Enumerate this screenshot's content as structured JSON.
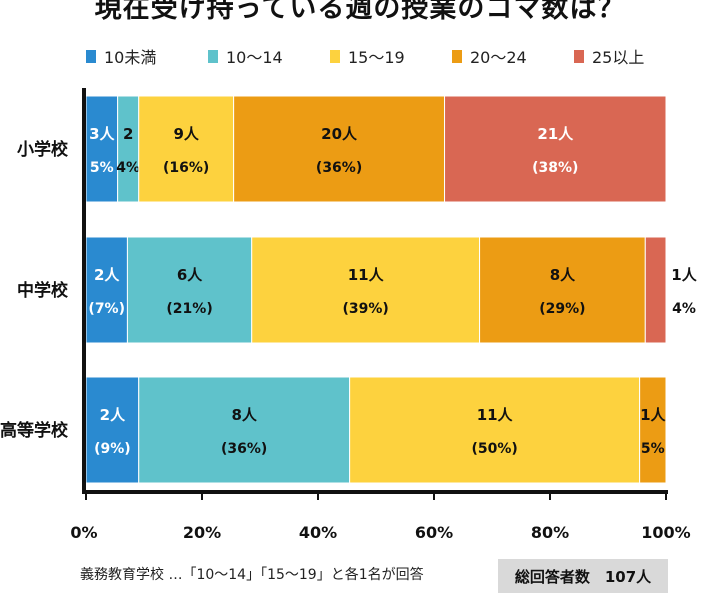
{
  "chart_data": {
    "type": "bar",
    "orientation": "horizontal",
    "stacked": true,
    "title": "現在受け持っている週の授業のコマ数は？",
    "categories": [
      "小学校",
      "中学校",
      "高等学校"
    ],
    "series": [
      {
        "name": "10未満",
        "color": "#2a8ad0",
        "values": [
          3,
          2,
          2
        ],
        "pct_labels": [
          "5%",
          "(7%)",
          "(9%)"
        ],
        "count_labels": [
          "3人",
          "2人",
          "2人"
        ]
      },
      {
        "name": "10〜14",
        "color": "#5fc2cb",
        "values": [
          2,
          6,
          8
        ],
        "pct_labels": [
          "4%",
          "(21%)",
          "(36%)"
        ],
        "count_labels": [
          "2",
          "6人",
          "8人"
        ]
      },
      {
        "name": "15〜19",
        "color": "#fdd23e",
        "values": [
          9,
          11,
          11
        ],
        "pct_labels": [
          "(16%)",
          "(39%)",
          "(50%)"
        ],
        "count_labels": [
          "9人",
          "11人",
          "11人"
        ]
      },
      {
        "name": "20〜24",
        "color": "#ec9c14",
        "values": [
          20,
          8,
          1
        ],
        "pct_labels": [
          "(36%)",
          "(29%)",
          "5%"
        ],
        "count_labels": [
          "20人",
          "8人",
          "1人"
        ]
      },
      {
        "name": "25以上",
        "color": "#d96753",
        "values": [
          21,
          1,
          0
        ],
        "pct_labels": [
          "(38%)",
          "4%",
          ""
        ],
        "count_labels": [
          "21人",
          "1人",
          ""
        ]
      }
    ],
    "xlim": [
      0,
      100
    ],
    "xticks": [
      "0%",
      "20%",
      "40%",
      "60%",
      "80%",
      "100%"
    ],
    "legend": "top"
  },
  "footnote": "義務教育学校 …「10〜14」「15〜19」と各1名が回答",
  "total": "総回答者数　107人"
}
